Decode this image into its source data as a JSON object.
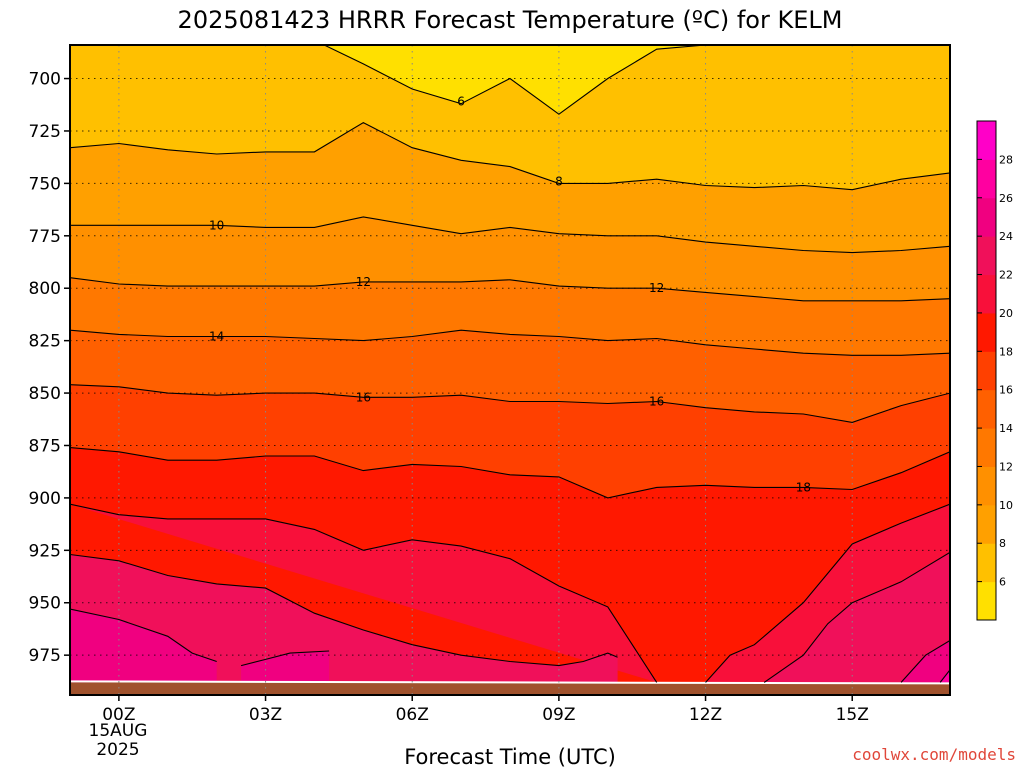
{
  "chart_data": {
    "type": "heatmap",
    "title": "2025081423 HRRR Forecast Temperature (ºC) for KELM",
    "xlabel": "Forecast Time (UTC)",
    "ylabel": "",
    "x_ticks": [
      "00Z",
      "03Z",
      "06Z",
      "09Z",
      "12Z",
      "15Z"
    ],
    "x_tick_hours": [
      0,
      3,
      6,
      9,
      12,
      15
    ],
    "x_date_label": [
      "15AUG",
      "2025"
    ],
    "xlim_hours": [
      -1,
      17
    ],
    "y_ticks": [
      700,
      725,
      750,
      775,
      800,
      825,
      850,
      875,
      900,
      925,
      950,
      975
    ],
    "ylim_hPa": [
      684,
      994
    ],
    "surface_pressure_hPa": 988,
    "grid": true,
    "colorbar": {
      "ticks": [
        6,
        8,
        10,
        12,
        14,
        16,
        18,
        20,
        22,
        24,
        26,
        28
      ],
      "bins": [
        {
          "lo": 4,
          "hi": 6,
          "color": "#ffe000"
        },
        {
          "lo": 6,
          "hi": 8,
          "color": "#ffc000"
        },
        {
          "lo": 8,
          "hi": 10,
          "color": "#ffa000"
        },
        {
          "lo": 10,
          "hi": 12,
          "color": "#ff9000"
        },
        {
          "lo": 12,
          "hi": 14,
          "color": "#ff7800"
        },
        {
          "lo": 14,
          "hi": 16,
          "color": "#ff6000"
        },
        {
          "lo": 16,
          "hi": 18,
          "color": "#ff4000"
        },
        {
          "lo": 18,
          "hi": 20,
          "color": "#ff1800"
        },
        {
          "lo": 20,
          "hi": 22,
          "color": "#f8103a"
        },
        {
          "lo": 22,
          "hi": 24,
          "color": "#f0105a"
        },
        {
          "lo": 24,
          "hi": 26,
          "color": "#f00080"
        },
        {
          "lo": 26,
          "hi": 28,
          "color": "#ff00a0"
        },
        {
          "lo": 28,
          "hi": 30,
          "color": "#ff00c8"
        }
      ]
    },
    "isotherms": [
      {
        "value": 6,
        "hours": [
          4.2,
          5,
          6,
          7,
          8,
          9,
          10,
          11,
          12,
          13
        ],
        "hPa": [
          684,
          693,
          705,
          712,
          700,
          717,
          700,
          686,
          684,
          684
        ]
      },
      {
        "value": 8,
        "hours": [
          -1,
          0,
          1,
          2,
          3,
          4,
          5,
          6,
          7,
          8,
          9,
          10,
          11,
          12,
          13,
          14,
          15,
          16,
          17
        ],
        "hPa": [
          733,
          731,
          734,
          736,
          735,
          735,
          721,
          733,
          739,
          742,
          750,
          750,
          748,
          751,
          752,
          751,
          753,
          748,
          745
        ]
      },
      {
        "value": 10,
        "hours": [
          -1,
          0,
          1,
          2,
          3,
          4,
          5,
          6,
          7,
          8,
          9,
          10,
          11,
          12,
          13,
          14,
          15,
          16,
          17
        ],
        "hPa": [
          770,
          770,
          770,
          770,
          771,
          771,
          766,
          770,
          774,
          771,
          774,
          775,
          775,
          778,
          780,
          782,
          783,
          782,
          780
        ]
      },
      {
        "value": 12,
        "hours": [
          -1,
          0,
          1,
          2,
          3,
          4,
          5,
          6,
          7,
          8,
          9,
          10,
          11,
          12,
          13,
          14,
          15,
          16,
          17
        ],
        "hPa": [
          795,
          798,
          799,
          799,
          799,
          799,
          797,
          797,
          797,
          796,
          799,
          800,
          800,
          802,
          804,
          806,
          806,
          806,
          805
        ]
      },
      {
        "value": 14,
        "hours": [
          -1,
          0,
          1,
          2,
          3,
          4,
          5,
          6,
          7,
          8,
          9,
          10,
          11,
          12,
          13,
          14,
          15,
          16,
          17
        ],
        "hPa": [
          820,
          822,
          823,
          823,
          823,
          824,
          825,
          823,
          820,
          822,
          823,
          825,
          824,
          827,
          829,
          831,
          832,
          832,
          831
        ]
      },
      {
        "value": 16,
        "hours": [
          -1,
          0,
          1,
          2,
          3,
          4,
          5,
          6,
          7,
          8,
          9,
          10,
          11,
          12,
          13,
          14,
          15,
          16,
          17
        ],
        "hPa": [
          846,
          847,
          850,
          851,
          850,
          850,
          852,
          852,
          851,
          854,
          854,
          855,
          854,
          857,
          859,
          860,
          864,
          856,
          850
        ]
      },
      {
        "value": 18,
        "hours": [
          -1,
          0,
          1,
          2,
          3,
          4,
          5,
          6,
          7,
          8,
          9,
          10,
          11,
          12,
          13,
          14,
          15,
          16,
          17
        ],
        "hPa": [
          876,
          878,
          882,
          882,
          880,
          880,
          887,
          884,
          885,
          889,
          890,
          900,
          895,
          894,
          895,
          895,
          896,
          888,
          878
        ]
      },
      {
        "value": 20,
        "hours": [
          -1,
          0,
          1,
          2,
          3,
          4,
          5,
          6,
          7,
          8,
          9,
          10,
          11,
          12,
          13,
          14,
          15,
          16,
          17
        ],
        "hPa": [
          903,
          908,
          910,
          910,
          910,
          915,
          925,
          920,
          923,
          929,
          942,
          952,
          988
        ]
      },
      {
        "value": 20,
        "hours": [
          12,
          12.5,
          13,
          14,
          15,
          16,
          17
        ],
        "hPa": [
          988,
          975,
          970,
          950,
          922,
          912,
          903
        ]
      },
      {
        "value": 22,
        "hours": [
          -1,
          0,
          1,
          2,
          3,
          4,
          5,
          6,
          7,
          8,
          9,
          9.5,
          10,
          10.2
        ],
        "hPa": [
          927,
          930,
          937,
          941,
          943,
          955,
          963,
          970,
          975,
          978,
          980,
          978,
          974,
          976
        ]
      },
      {
        "value": 22,
        "hours": [
          13.2,
          14,
          14.5,
          15,
          16,
          17
        ],
        "hPa": [
          988,
          975,
          960,
          950,
          940,
          926
        ]
      },
      {
        "value": 24,
        "hours": [
          -1,
          0,
          1,
          1.5,
          2
        ],
        "hPa": [
          953,
          958,
          966,
          974,
          978
        ]
      },
      {
        "value": 24,
        "hours": [
          2.5,
          3,
          3.5,
          4.3
        ],
        "hPa": [
          980,
          977,
          974,
          973
        ]
      },
      {
        "value": 24,
        "hours": [
          16,
          16.5,
          17
        ],
        "hPa": [
          988,
          975,
          968
        ]
      },
      {
        "value": 26,
        "hours": [
          16.8,
          17
        ],
        "hPa": [
          988,
          982
        ]
      }
    ],
    "contour_labels": [
      {
        "text": "6",
        "hour": 7.0,
        "hPa": 711
      },
      {
        "text": "8",
        "hour": 9.0,
        "hPa": 749
      },
      {
        "text": "10",
        "hour": 2.0,
        "hPa": 770
      },
      {
        "text": "12",
        "hour": 5.0,
        "hPa": 797
      },
      {
        "text": "12",
        "hour": 11.0,
        "hPa": 800
      },
      {
        "text": "14",
        "hour": 2.0,
        "hPa": 823
      },
      {
        "text": "16",
        "hour": 5.0,
        "hPa": 852
      },
      {
        "text": "16",
        "hour": 11.0,
        "hPa": 854
      },
      {
        "text": "18",
        "hour": 14.0,
        "hPa": 895
      }
    ],
    "ground_color": "#a0522d"
  },
  "credit": "coolwx.com/models"
}
